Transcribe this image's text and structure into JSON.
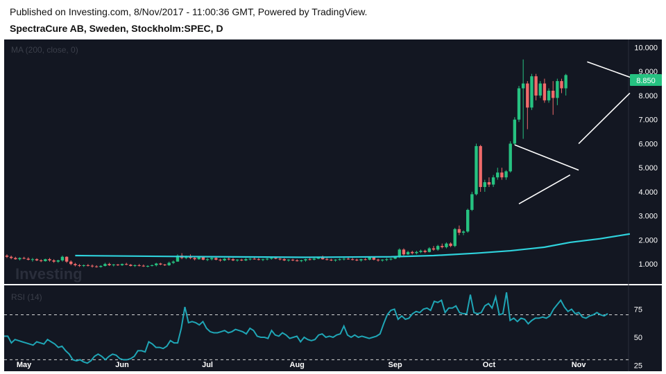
{
  "header": {
    "published": "Published on Investing.com, 8/Nov/2017 - 11:00:36 GMT, Powered by TradingView.",
    "symbol": "SpectraCure AB, Sweden, Stockholm:SPEC, D"
  },
  "watermark": "Investing",
  "colors": {
    "background": "#131722",
    "up": "#26c281",
    "down": "#f06a6a",
    "ma": "#2fd3dd",
    "rsi": "#1fa6b6",
    "trendline": "#ffffff",
    "price_label_bg": "#26c281"
  },
  "chart_data": [
    {
      "type": "candlestick",
      "indicator_label": "MA (200, close, 0)",
      "price_label": "8.850",
      "y_ticks": [
        "10.000",
        "9.000",
        "8.000",
        "7.000",
        "6.000",
        "5.000",
        "4.000",
        "3.000",
        "2.000",
        "1.000"
      ],
      "y_tick_values": [
        10,
        9,
        8,
        7,
        6,
        5,
        4,
        3,
        2,
        1
      ],
      "ylim": [
        0.2,
        10.3
      ],
      "x_tick_labels": [
        "May",
        "Jun",
        "Jul",
        "Aug",
        "Sep",
        "Oct",
        "Nov"
      ],
      "x_tick_index": [
        4,
        27,
        47,
        68,
        91,
        113,
        134
      ],
      "ohlc": [
        [
          1.35,
          1.4,
          1.25,
          1.3
        ],
        [
          1.3,
          1.35,
          1.2,
          1.25
        ],
        [
          1.25,
          1.3,
          1.18,
          1.2
        ],
        [
          1.2,
          1.28,
          1.15,
          1.25
        ],
        [
          1.25,
          1.3,
          1.2,
          1.22
        ],
        [
          1.22,
          1.28,
          1.15,
          1.18
        ],
        [
          1.18,
          1.25,
          1.1,
          1.2
        ],
        [
          1.2,
          1.24,
          1.12,
          1.15
        ],
        [
          1.15,
          1.2,
          1.08,
          1.12
        ],
        [
          1.12,
          1.22,
          1.1,
          1.2
        ],
        [
          1.2,
          1.25,
          1.1,
          1.15
        ],
        [
          1.15,
          1.2,
          1.05,
          1.1
        ],
        [
          1.1,
          1.18,
          1.05,
          1.15
        ],
        [
          1.15,
          1.35,
          1.1,
          1.3
        ],
        [
          1.3,
          1.32,
          1.05,
          1.1
        ],
        [
          1.1,
          1.15,
          0.95,
          1.0
        ],
        [
          1.0,
          1.05,
          0.9,
          0.95
        ],
        [
          0.95,
          1.0,
          0.88,
          0.92
        ],
        [
          0.92,
          0.98,
          0.88,
          0.95
        ],
        [
          0.95,
          1.0,
          0.9,
          0.93
        ],
        [
          0.93,
          0.98,
          0.85,
          0.9
        ],
        [
          0.9,
          0.95,
          0.85,
          0.88
        ],
        [
          0.88,
          0.95,
          0.85,
          0.92
        ],
        [
          0.92,
          1.05,
          0.9,
          1.0
        ],
        [
          1.0,
          1.05,
          0.92,
          0.95
        ],
        [
          0.95,
          1.0,
          0.9,
          0.98
        ],
        [
          0.98,
          1.0,
          0.92,
          0.95
        ],
        [
          0.95,
          1.02,
          0.92,
          1.0
        ],
        [
          1.0,
          1.05,
          0.95,
          0.97
        ],
        [
          0.97,
          1.0,
          0.9,
          0.92
        ],
        [
          0.92,
          0.98,
          0.88,
          0.95
        ],
        [
          0.95,
          1.0,
          0.9,
          0.93
        ],
        [
          0.93,
          0.98,
          0.88,
          0.9
        ],
        [
          0.9,
          0.95,
          0.86,
          0.92
        ],
        [
          0.92,
          0.98,
          0.9,
          0.95
        ],
        [
          0.95,
          1.05,
          0.9,
          1.02
        ],
        [
          1.02,
          1.05,
          0.95,
          0.98
        ],
        [
          0.98,
          1.0,
          0.92,
          0.95
        ],
        [
          0.95,
          1.1,
          0.92,
          1.05
        ],
        [
          1.05,
          1.15,
          1.0,
          1.1
        ],
        [
          1.1,
          1.4,
          1.1,
          1.35
        ],
        [
          1.35,
          1.45,
          1.2,
          1.25
        ],
        [
          1.25,
          1.35,
          1.2,
          1.3
        ],
        [
          1.3,
          1.4,
          1.2,
          1.25
        ],
        [
          1.25,
          1.3,
          1.15,
          1.2
        ],
        [
          1.2,
          1.3,
          1.18,
          1.28
        ],
        [
          1.28,
          1.32,
          1.15,
          1.18
        ],
        [
          1.18,
          1.25,
          1.12,
          1.2
        ],
        [
          1.2,
          1.28,
          1.15,
          1.25
        ],
        [
          1.25,
          1.3,
          1.15,
          1.18
        ],
        [
          1.18,
          1.22,
          1.1,
          1.15
        ],
        [
          1.15,
          1.25,
          1.12,
          1.22
        ],
        [
          1.22,
          1.28,
          1.15,
          1.2
        ],
        [
          1.2,
          1.25,
          1.12,
          1.15
        ],
        [
          1.15,
          1.2,
          1.1,
          1.18
        ],
        [
          1.18,
          1.22,
          1.12,
          1.15
        ],
        [
          1.15,
          1.25,
          1.12,
          1.2
        ],
        [
          1.2,
          1.25,
          1.15,
          1.22
        ],
        [
          1.22,
          1.28,
          1.18,
          1.2
        ],
        [
          1.2,
          1.25,
          1.15,
          1.18
        ],
        [
          1.18,
          1.22,
          1.12,
          1.2
        ],
        [
          1.2,
          1.25,
          1.15,
          1.22
        ],
        [
          1.22,
          1.3,
          1.18,
          1.25
        ],
        [
          1.25,
          1.3,
          1.2,
          1.22
        ],
        [
          1.22,
          1.25,
          1.15,
          1.2
        ],
        [
          1.2,
          1.24,
          1.12,
          1.15
        ],
        [
          1.15,
          1.2,
          1.1,
          1.18
        ],
        [
          1.18,
          1.22,
          1.12,
          1.15
        ],
        [
          1.15,
          1.2,
          1.1,
          1.12
        ],
        [
          1.12,
          1.18,
          1.08,
          1.15
        ],
        [
          1.15,
          1.22,
          1.1,
          1.2
        ],
        [
          1.2,
          1.25,
          1.15,
          1.18
        ],
        [
          1.18,
          1.25,
          1.15,
          1.22
        ],
        [
          1.22,
          1.3,
          1.2,
          1.28
        ],
        [
          1.28,
          1.35,
          1.18,
          1.2
        ],
        [
          1.2,
          1.25,
          1.15,
          1.18
        ],
        [
          1.18,
          1.22,
          1.12,
          1.15
        ],
        [
          1.15,
          1.2,
          1.1,
          1.18
        ],
        [
          1.18,
          1.24,
          1.14,
          1.2
        ],
        [
          1.2,
          1.25,
          1.15,
          1.22
        ],
        [
          1.22,
          1.28,
          1.18,
          1.2
        ],
        [
          1.2,
          1.25,
          1.15,
          1.18
        ],
        [
          1.18,
          1.22,
          1.12,
          1.15
        ],
        [
          1.15,
          1.22,
          1.1,
          1.2
        ],
        [
          1.2,
          1.25,
          1.15,
          1.18
        ],
        [
          1.18,
          1.3,
          1.15,
          1.28
        ],
        [
          1.28,
          1.32,
          1.15,
          1.18
        ],
        [
          1.18,
          1.22,
          1.1,
          1.15
        ],
        [
          1.15,
          1.2,
          1.1,
          1.18
        ],
        [
          1.18,
          1.25,
          1.12,
          1.2
        ],
        [
          1.2,
          1.25,
          1.15,
          1.22
        ],
        [
          1.22,
          1.3,
          1.2,
          1.28
        ],
        [
          1.28,
          1.65,
          1.25,
          1.6
        ],
        [
          1.6,
          1.65,
          1.35,
          1.4
        ],
        [
          1.4,
          1.55,
          1.38,
          1.5
        ],
        [
          1.5,
          1.55,
          1.4,
          1.45
        ],
        [
          1.45,
          1.55,
          1.4,
          1.5
        ],
        [
          1.5,
          1.6,
          1.45,
          1.55
        ],
        [
          1.55,
          1.6,
          1.45,
          1.5
        ],
        [
          1.5,
          1.7,
          1.48,
          1.65
        ],
        [
          1.65,
          1.75,
          1.55,
          1.6
        ],
        [
          1.6,
          1.8,
          1.55,
          1.75
        ],
        [
          1.75,
          1.85,
          1.65,
          1.7
        ],
        [
          1.7,
          1.9,
          1.65,
          1.85
        ],
        [
          1.85,
          1.9,
          1.7,
          1.75
        ],
        [
          1.75,
          2.5,
          1.7,
          2.45
        ],
        [
          2.45,
          2.6,
          2.2,
          2.3
        ],
        [
          2.3,
          2.4,
          2.2,
          2.35
        ],
        [
          2.35,
          3.3,
          2.3,
          3.25
        ],
        [
          3.25,
          4.0,
          3.2,
          3.9
        ],
        [
          3.9,
          6.0,
          3.85,
          5.9
        ],
        [
          5.9,
          5.95,
          4.0,
          4.2
        ],
        [
          4.2,
          4.5,
          4.0,
          4.4
        ],
        [
          4.4,
          4.6,
          4.2,
          4.3
        ],
        [
          4.3,
          4.7,
          4.2,
          4.6
        ],
        [
          4.6,
          5.0,
          4.5,
          4.8
        ],
        [
          4.8,
          5.0,
          4.5,
          4.6
        ],
        [
          4.6,
          4.9,
          4.5,
          4.85
        ],
        [
          4.85,
          6.1,
          4.8,
          6.0
        ],
        [
          6.0,
          7.1,
          5.95,
          7.0
        ],
        [
          7.0,
          8.4,
          6.9,
          8.3
        ],
        [
          8.3,
          9.5,
          6.2,
          8.5
        ],
        [
          8.5,
          8.6,
          6.6,
          7.5
        ],
        [
          7.5,
          8.9,
          7.4,
          8.8
        ],
        [
          8.8,
          8.9,
          7.8,
          8.0
        ],
        [
          8.0,
          8.6,
          7.9,
          8.5
        ],
        [
          8.5,
          8.7,
          7.7,
          7.8
        ],
        [
          7.8,
          8.3,
          7.7,
          8.2
        ],
        [
          8.2,
          8.6,
          7.2,
          7.9
        ],
        [
          7.9,
          8.7,
          7.6,
          8.6
        ],
        [
          8.6,
          8.7,
          8.1,
          8.3
        ],
        [
          8.3,
          8.9,
          8.0,
          8.85
        ]
      ],
      "ma_200": [
        [
          16,
          1.35
        ],
        [
          35,
          1.32
        ],
        [
          50,
          1.3
        ],
        [
          70,
          1.28
        ],
        [
          90,
          1.3
        ],
        [
          100,
          1.35
        ],
        [
          110,
          1.45
        ],
        [
          118,
          1.55
        ],
        [
          126,
          1.7
        ],
        [
          132,
          1.9
        ],
        [
          139,
          2.05
        ],
        [
          146,
          2.25
        ]
      ],
      "trendlines": [
        [
          [
            136,
            9.4
          ],
          [
            147,
            8.7
          ]
        ],
        [
          [
            134,
            6.0
          ],
          [
            146,
            8.1
          ]
        ],
        [
          [
            119,
            5.95
          ],
          [
            134,
            4.9
          ]
        ],
        [
          [
            120,
            3.5
          ],
          [
            132,
            4.7
          ]
        ]
      ]
    },
    {
      "type": "line",
      "indicator_label": "RSI (14)",
      "y_ticks": [
        "75",
        "50",
        "25"
      ],
      "y_tick_values": [
        75,
        50,
        25
      ],
      "ylim": [
        21,
        95
      ],
      "dashed_levels": [
        70,
        30
      ],
      "rsi_14": [
        51,
        51,
        45,
        48,
        47,
        46,
        45,
        44,
        43,
        46,
        45,
        44,
        48,
        46,
        44,
        41,
        42,
        38,
        35,
        30,
        29,
        30,
        28,
        27,
        29,
        33,
        35,
        33,
        30,
        33,
        35,
        34,
        31,
        30,
        30,
        31,
        33,
        38,
        38,
        37,
        46,
        44,
        41,
        41,
        40,
        42,
        47,
        45,
        45,
        58,
        77,
        63,
        64,
        63,
        61,
        64,
        58,
        55,
        54,
        54,
        55,
        56,
        54,
        55,
        57,
        56,
        55,
        53,
        58,
        56,
        51,
        50,
        50,
        49,
        56,
        52,
        51,
        54,
        52,
        49,
        50,
        51,
        46,
        50,
        48,
        47,
        48,
        52,
        53,
        50,
        51,
        50,
        52,
        53,
        60,
        52,
        50,
        52,
        50,
        51,
        50,
        49,
        50,
        51,
        53,
        62,
        70,
        74,
        75,
        66,
        69,
        66,
        67,
        71,
        73,
        72,
        75,
        76,
        74,
        82,
        81,
        83,
        72,
        76,
        76,
        78,
        72,
        71,
        71,
        88,
        72,
        71,
        72,
        78,
        80,
        76,
        86,
        70,
        71,
        90,
        65,
        67,
        64,
        67,
        66,
        62,
        65,
        67,
        67,
        68,
        67,
        69,
        75,
        79,
        83,
        77,
        73,
        75,
        71,
        72,
        68,
        67,
        69,
        70,
        72,
        70,
        69,
        71
      ]
    }
  ]
}
